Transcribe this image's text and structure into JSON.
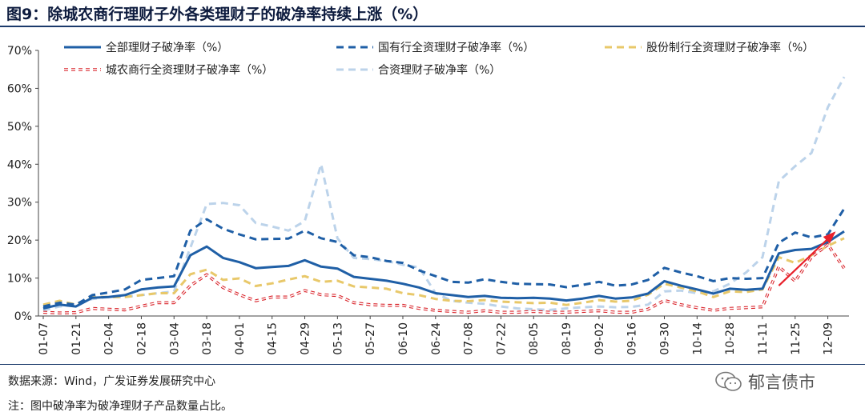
{
  "header": {
    "title": "图9：除城农商行理财子外各类理财子的破净率持续上涨（%）"
  },
  "footer": {
    "source": "数据来源：Wind，广发证券发展研究中心",
    "note": "注：图中破净率为破净理财子产品数量占比。",
    "watermark": "郁言债市",
    "watermark_icon": "wechat-icon"
  },
  "chart_data": {
    "type": "line",
    "title": "除城农商行理财子外各类理财子的破净率持续上涨（%）",
    "xlabel": "",
    "ylabel": "",
    "ylim": [
      0,
      70
    ],
    "yticks": [
      "0%",
      "10%",
      "20%",
      "30%",
      "40%",
      "50%",
      "60%",
      "70%"
    ],
    "grid": false,
    "legend_position": "top",
    "x": [
      "01-07",
      "01-14",
      "01-21",
      "01-28",
      "02-04",
      "02-11",
      "02-18",
      "02-25",
      "03-04",
      "03-11",
      "03-18",
      "03-25",
      "04-01",
      "04-08",
      "04-15",
      "04-22",
      "04-29",
      "05-06",
      "05-13",
      "05-20",
      "05-27",
      "06-03",
      "06-10",
      "06-17",
      "06-24",
      "07-01",
      "07-08",
      "07-15",
      "07-22",
      "07-29",
      "08-05",
      "08-12",
      "08-19",
      "08-26",
      "09-02",
      "09-09",
      "09-16",
      "09-23",
      "09-30",
      "10-07",
      "10-14",
      "10-21",
      "10-28",
      "11-04",
      "11-11",
      "11-18",
      "11-25",
      "12-02",
      "12-09",
      "12-16"
    ],
    "xtick_labels": [
      "01-07",
      "01-21",
      "02-04",
      "02-18",
      "03-04",
      "03-18",
      "04-01",
      "04-15",
      "04-29",
      "05-13",
      "05-27",
      "06-10",
      "06-24",
      "07-08",
      "07-22",
      "08-05",
      "08-19",
      "09-02",
      "09-16",
      "09-30",
      "10-14",
      "10-28",
      "11-11",
      "11-25",
      "12-09"
    ],
    "series": [
      {
        "name": "全部理财子破净率（%）",
        "color": "#1f5fa6",
        "style": "solid",
        "values": [
          2.0,
          3.0,
          2.5,
          4.8,
          5.0,
          5.5,
          7.0,
          7.5,
          7.8,
          16.0,
          18.3,
          15.3,
          14.2,
          12.6,
          12.9,
          13.2,
          14.7,
          13.0,
          12.5,
          10.3,
          9.8,
          9.3,
          8.5,
          7.5,
          6.0,
          5.5,
          5.0,
          5.3,
          4.8,
          4.7,
          4.8,
          4.6,
          4.1,
          4.6,
          5.3,
          4.6,
          4.9,
          5.9,
          9.2,
          8.0,
          7.0,
          5.9,
          7.2,
          6.9,
          7.2,
          16.5,
          17.4,
          17.7,
          19.5,
          22.3
        ]
      },
      {
        "name": "国有行全资理财子破净率（%）",
        "color": "#1f5fa6",
        "style": "dash",
        "values": [
          2.5,
          3.5,
          3.0,
          5.5,
          6.2,
          7.0,
          9.5,
          10.0,
          10.5,
          22.5,
          25.5,
          23.0,
          21.5,
          20.2,
          20.3,
          20.4,
          22.5,
          20.5,
          19.5,
          16.0,
          15.5,
          14.5,
          14.0,
          12.0,
          10.5,
          9.0,
          8.8,
          9.7,
          9.0,
          8.5,
          8.4,
          8.3,
          7.6,
          8.2,
          9.0,
          8.0,
          8.3,
          9.5,
          12.7,
          11.5,
          10.5,
          9.2,
          10.0,
          9.8,
          10.0,
          19.3,
          22.0,
          20.7,
          21.5,
          28.3
        ]
      },
      {
        "name": "股份制行全资理财子破净率（%）",
        "color": "#e8c86a",
        "style": "dash",
        "values": [
          3.0,
          4.0,
          3.0,
          5.0,
          5.0,
          5.0,
          5.5,
          6.0,
          6.0,
          11.0,
          12.2,
          9.5,
          9.9,
          7.9,
          8.6,
          9.6,
          10.5,
          9.0,
          9.3,
          7.8,
          7.5,
          7.2,
          6.0,
          5.5,
          4.5,
          4.0,
          3.9,
          4.2,
          3.8,
          3.6,
          3.4,
          3.5,
          2.9,
          3.5,
          4.2,
          3.8,
          4.0,
          5.6,
          8.5,
          7.5,
          6.5,
          5.0,
          6.5,
          6.3,
          7.0,
          15.5,
          14.0,
          16.0,
          18.5,
          20.5
        ]
      },
      {
        "name": "城农商行全资理财子破净率（%）",
        "color": "#d9232a",
        "style": "dash-hollow",
        "values": [
          1.0,
          0.8,
          0.9,
          2.0,
          1.8,
          1.6,
          2.6,
          3.5,
          3.5,
          8.0,
          10.9,
          7.5,
          5.6,
          4.0,
          5.0,
          5.0,
          6.7,
          5.6,
          5.4,
          3.5,
          3.0,
          2.8,
          2.8,
          2.0,
          1.5,
          1.2,
          1.0,
          1.4,
          1.0,
          1.0,
          1.2,
          1.0,
          1.0,
          1.2,
          1.4,
          1.0,
          1.0,
          1.8,
          4.1,
          3.0,
          2.2,
          1.5,
          2.0,
          2.2,
          2.4,
          13.0,
          9.2,
          15.5,
          18.8,
          12.6
        ]
      },
      {
        "name": "合资理财子破净率（%）",
        "color": "#bcd3ea",
        "style": "dash",
        "values": [
          1.5,
          2.5,
          3.0,
          4.5,
          5.0,
          5.0,
          5.5,
          6.0,
          6.5,
          18.0,
          29.5,
          29.8,
          29.2,
          24.5,
          23.6,
          22.5,
          25.0,
          40.0,
          20.5,
          15.3,
          15.0,
          14.5,
          13.5,
          12.8,
          6.0,
          4.0,
          3.5,
          3.2,
          2.5,
          2.0,
          1.8,
          1.6,
          2.0,
          2.3,
          2.5,
          2.3,
          2.4,
          3.0,
          6.5,
          6.7,
          6.0,
          6.5,
          8.5,
          11.5,
          15.5,
          35.5,
          39.5,
          43.0,
          55.0,
          63.0
        ]
      }
    ],
    "annotations": [
      {
        "type": "arrow",
        "color": "#e8202a",
        "from": [
          "11-18",
          8.0
        ],
        "to": [
          "12-16",
          22.0
        ]
      }
    ]
  }
}
